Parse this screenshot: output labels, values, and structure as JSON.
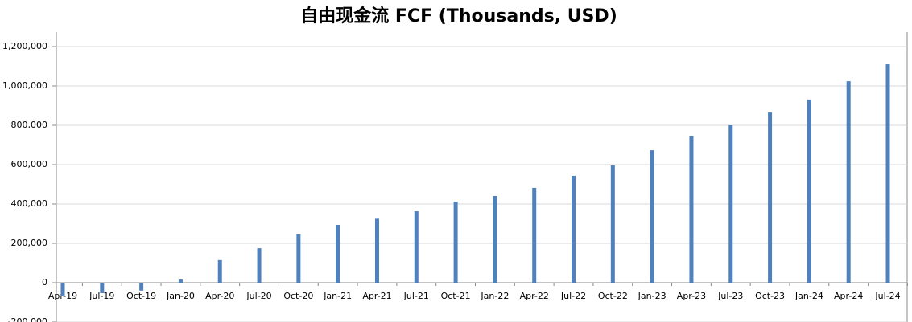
{
  "chart_data": {
    "type": "bar",
    "title": "自由现金流 FCF (Thousands, USD)",
    "categories": [
      "Apr-19",
      "Jul-19",
      "Oct-19",
      "Jan-20",
      "Apr-20",
      "Jul-20",
      "Oct-20",
      "Jan-21",
      "Apr-21",
      "Jul-21",
      "Oct-21",
      "Jan-22",
      "Apr-22",
      "Jul-22",
      "Oct-22",
      "Jan-23",
      "Apr-23",
      "Jul-23",
      "Oct-23",
      "Jan-24",
      "Apr-24",
      "Jul-24"
    ],
    "values": [
      -65000,
      -53000,
      -40000,
      16000,
      115000,
      175000,
      245000,
      294000,
      325000,
      363000,
      412000,
      441000,
      482000,
      543000,
      596000,
      673000,
      747000,
      800000,
      865000,
      931000,
      1024000,
      1110000
    ],
    "color": "#4f81bd",
    "ylim": [
      -200000,
      1200000
    ],
    "yticks": [
      {
        "value": -200000,
        "label": "-200,000"
      },
      0,
      {
        "value": 200000,
        "label": "200,000"
      },
      {
        "value": 400000,
        "label": "400,000"
      },
      {
        "value": 600000,
        "label": "600,000"
      },
      {
        "value": 800000,
        "label": "800,000"
      },
      {
        "value": 1000000,
        "label": "1,000,000"
      },
      {
        "value": 1200000,
        "label": "1,200,000"
      }
    ],
    "grid": true
  }
}
